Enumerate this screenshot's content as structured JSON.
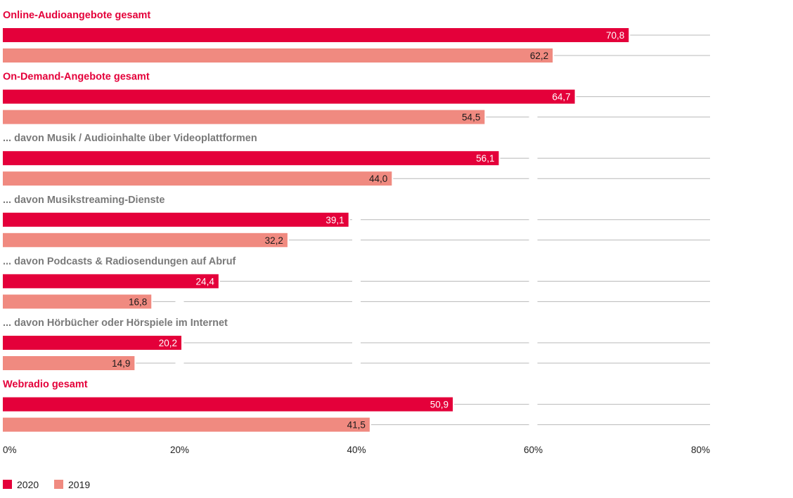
{
  "chart_data": {
    "type": "bar",
    "orientation": "horizontal",
    "categories": [
      "Online-Audioangebote gesamt",
      "On-Demand-Angebote gesamt",
      "... davon Musik / Audioinhalte über Videoplattformen",
      "... davon Musikstreaming-Dienste",
      "... davon Podcasts & Radiosendungen auf Abruf",
      "... davon Hörbücher oder Hörspiele im Internet",
      "Webradio gesamt"
    ],
    "category_emphasis": [
      true,
      true,
      false,
      false,
      false,
      false,
      true
    ],
    "series": [
      {
        "name": "2020",
        "values": [
          70.8,
          64.7,
          56.1,
          39.1,
          24.4,
          20.2,
          50.9
        ],
        "labels": [
          "70,8",
          "64,7",
          "56,1",
          "39,1",
          "24,4",
          "20,2",
          "50,9"
        ],
        "color": "#e4003a",
        "label_color": "#ffffff"
      },
      {
        "name": "2019",
        "values": [
          62.2,
          54.5,
          44.0,
          32.2,
          16.8,
          14.9,
          41.5
        ],
        "labels": [
          "62,2",
          "54,5",
          "44,0",
          "32,2",
          "16,8",
          "14,9",
          "41,5"
        ],
        "color": "#f08a80",
        "label_color": "#1a1a1a"
      }
    ],
    "xlim": [
      0,
      80
    ],
    "xticks": [
      0,
      20,
      40,
      60,
      80
    ],
    "xtick_labels": [
      "0%",
      "20%",
      "40%",
      "60%",
      "80%"
    ],
    "grid": true,
    "legend_position": "bottom-left",
    "colors": {
      "emphasis_label": "#e4003a",
      "sub_label": "#7a7a7a",
      "grid": "#b8b8b8"
    }
  }
}
